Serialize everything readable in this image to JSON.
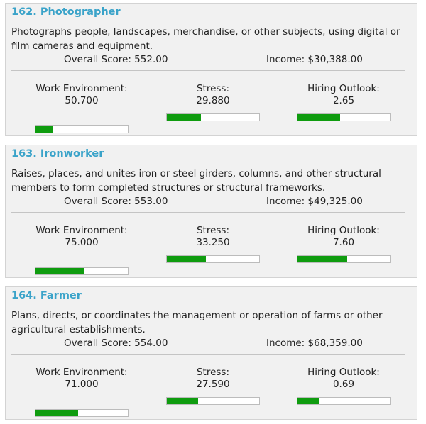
{
  "jobs": [
    {
      "title": "162. Photographer",
      "description": "Photographs people, landscapes, merchandise, or other subjects, using digital or film cameras and equipment.",
      "overall_score": "Overall Score: 552.00",
      "income": "Income: $30,388.00",
      "work_environment": {
        "label": "Work Environment:",
        "value": "50.700",
        "fill": 0.19
      },
      "stress": {
        "label": "Stress:",
        "value": "29.880",
        "fill": 0.37
      },
      "hiring_outlook": {
        "label": "Hiring Outlook:",
        "value": "2.65",
        "fill": 0.46
      }
    },
    {
      "title": "163. Ironworker",
      "description": "Raises, places, and unites iron or steel girders, columns, and other structural members to form completed structures or structural frameworks.",
      "overall_score": "Overall Score: 553.00",
      "income": "Income: $49,325.00",
      "work_environment": {
        "label": "Work Environment:",
        "value": "75.000",
        "fill": 0.52
      },
      "stress": {
        "label": "Stress:",
        "value": "33.250",
        "fill": 0.42
      },
      "hiring_outlook": {
        "label": "Hiring Outlook:",
        "value": "7.60",
        "fill": 0.54
      }
    },
    {
      "title": "164. Farmer",
      "description": "Plans, directs, or coordinates the management or operation of farms or other agricultural establishments.",
      "overall_score": "Overall Score: 554.00",
      "income": "Income: $68,359.00",
      "work_environment": {
        "label": "Work Environment:",
        "value": "71.000",
        "fill": 0.46
      },
      "stress": {
        "label": "Stress:",
        "value": "27.590",
        "fill": 0.34
      },
      "hiring_outlook": {
        "label": "Hiring Outlook:",
        "value": "0.69",
        "fill": 0.23
      }
    }
  ],
  "colors": {
    "title": "#3aa3c9",
    "bar_fill": "#0f9c0f",
    "card_bg": "#f1f1f1"
  }
}
